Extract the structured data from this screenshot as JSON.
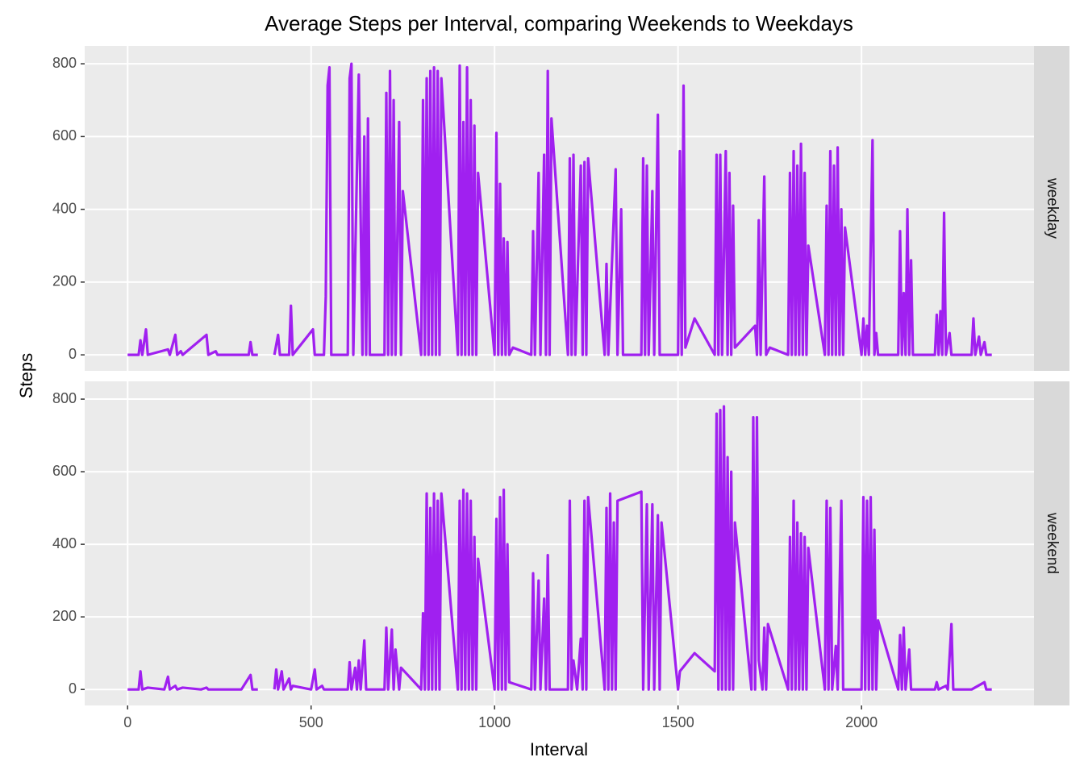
{
  "chart_data": {
    "type": "line",
    "title": "Average Steps per Interval, comparing Weekends to Weekdays",
    "xlabel": "Interval",
    "ylabel": "Steps",
    "xlim": [
      -117,
      2470
    ],
    "xticks": [
      0,
      500,
      1000,
      1500,
      2000
    ],
    "ylim": [
      -44,
      849
    ],
    "yticks": [
      0,
      200,
      400,
      600,
      800
    ],
    "grid": true,
    "color": "#a020f0",
    "facets": [
      {
        "label": "weekday",
        "x": [
          0,
          30,
          35,
          40,
          50,
          55,
          110,
          115,
          130,
          135,
          145,
          150,
          215,
          220,
          240,
          245,
          330,
          335,
          340,
          355,
          380,
          400,
          410,
          415,
          440,
          445,
          450,
          505,
          510,
          535,
          540,
          545,
          550,
          555,
          600,
          605,
          610,
          615,
          630,
          640,
          645,
          650,
          655,
          660,
          700,
          705,
          710,
          715,
          720,
          725,
          730,
          740,
          745,
          750,
          800,
          805,
          810,
          815,
          820,
          825,
          830,
          835,
          840,
          845,
          850,
          855,
          900,
          905,
          910,
          915,
          920,
          925,
          930,
          935,
          940,
          945,
          950,
          955,
          1000,
          1005,
          1010,
          1015,
          1020,
          1025,
          1030,
          1035,
          1040,
          1050,
          1100,
          1105,
          1110,
          1120,
          1125,
          1135,
          1140,
          1145,
          1150,
          1155,
          1200,
          1205,
          1210,
          1215,
          1220,
          1235,
          1240,
          1245,
          1250,
          1255,
          1300,
          1305,
          1310,
          1330,
          1335,
          1345,
          1350,
          1400,
          1405,
          1410,
          1415,
          1420,
          1430,
          1435,
          1445,
          1450,
          1500,
          1505,
          1510,
          1515,
          1520,
          1545,
          1600,
          1605,
          1610,
          1615,
          1620,
          1630,
          1635,
          1640,
          1645,
          1650,
          1655,
          1710,
          1715,
          1720,
          1725,
          1735,
          1740,
          1750,
          1800,
          1805,
          1810,
          1815,
          1820,
          1825,
          1830,
          1835,
          1840,
          1845,
          1850,
          1855,
          1900,
          1905,
          1910,
          1915,
          1920,
          1925,
          1930,
          1935,
          1940,
          1945,
          1950,
          1955,
          2000,
          2005,
          2010,
          2015,
          2020,
          2030,
          2035,
          2040,
          2045,
          2100,
          2105,
          2110,
          2115,
          2120,
          2125,
          2130,
          2135,
          2140,
          2200,
          2205,
          2210,
          2215,
          2220,
          2225,
          2230,
          2240,
          2245,
          2300,
          2305,
          2310,
          2320,
          2325,
          2335,
          2340,
          2355
        ],
        "values": [
          0,
          0,
          40,
          0,
          70,
          0,
          15,
          0,
          55,
          0,
          10,
          0,
          55,
          0,
          10,
          0,
          0,
          35,
          0,
          0,
          null,
          0,
          55,
          0,
          0,
          135,
          0,
          70,
          0,
          0,
          160,
          740,
          790,
          0,
          0,
          760,
          800,
          0,
          770,
          0,
          600,
          0,
          650,
          0,
          0,
          720,
          0,
          780,
          0,
          700,
          0,
          640,
          0,
          450,
          0,
          700,
          0,
          760,
          0,
          780,
          0,
          790,
          0,
          780,
          0,
          760,
          0,
          795,
          0,
          640,
          0,
          790,
          0,
          700,
          0,
          630,
          0,
          500,
          0,
          610,
          0,
          470,
          0,
          320,
          0,
          310,
          0,
          20,
          0,
          340,
          0,
          500,
          0,
          550,
          0,
          780,
          0,
          650,
          0,
          540,
          0,
          550,
          0,
          520,
          0,
          530,
          0,
          540,
          0,
          250,
          0,
          510,
          0,
          400,
          0,
          0,
          540,
          0,
          520,
          0,
          450,
          0,
          660,
          0,
          0,
          560,
          0,
          740,
          20,
          100,
          0,
          550,
          0,
          550,
          0,
          560,
          0,
          500,
          0,
          410,
          20,
          80,
          0,
          370,
          0,
          490,
          0,
          20,
          0,
          500,
          0,
          560,
          0,
          520,
          0,
          580,
          0,
          500,
          0,
          300,
          0,
          410,
          0,
          560,
          0,
          520,
          0,
          570,
          0,
          400,
          0,
          350,
          0,
          100,
          0,
          80,
          0,
          590,
          0,
          60,
          0,
          0,
          340,
          0,
          170,
          0,
          400,
          0,
          260,
          0,
          0,
          110,
          0,
          120,
          0,
          390,
          0,
          60,
          0,
          0,
          100,
          0,
          50,
          0,
          35,
          0,
          0
        ]
      },
      {
        "label": "weekend",
        "x": [
          0,
          30,
          35,
          40,
          55,
          100,
          110,
          115,
          130,
          135,
          150,
          200,
          215,
          220,
          310,
          335,
          340,
          355,
          380,
          400,
          405,
          410,
          420,
          425,
          440,
          445,
          450,
          500,
          510,
          515,
          530,
          535,
          600,
          605,
          610,
          620,
          625,
          630,
          635,
          645,
          650,
          700,
          705,
          710,
          720,
          725,
          730,
          740,
          745,
          800,
          805,
          810,
          815,
          820,
          825,
          830,
          835,
          840,
          845,
          850,
          855,
          900,
          905,
          910,
          915,
          920,
          925,
          930,
          935,
          940,
          945,
          950,
          955,
          1000,
          1005,
          1010,
          1015,
          1020,
          1025,
          1030,
          1035,
          1040,
          1100,
          1105,
          1110,
          1120,
          1125,
          1135,
          1140,
          1145,
          1150,
          1200,
          1205,
          1210,
          1215,
          1225,
          1235,
          1240,
          1245,
          1250,
          1255,
          1300,
          1305,
          1310,
          1315,
          1320,
          1325,
          1330,
          1335,
          1400,
          1405,
          1415,
          1420,
          1430,
          1435,
          1445,
          1450,
          1455,
          1500,
          1505,
          1545,
          1600,
          1605,
          1610,
          1615,
          1620,
          1625,
          1630,
          1635,
          1640,
          1645,
          1650,
          1655,
          1700,
          1705,
          1710,
          1715,
          1720,
          1730,
          1735,
          1740,
          1745,
          1800,
          1805,
          1810,
          1815,
          1820,
          1825,
          1830,
          1835,
          1840,
          1845,
          1850,
          1855,
          1900,
          1905,
          1910,
          1915,
          1920,
          1930,
          1935,
          1945,
          1950,
          2000,
          2005,
          2010,
          2015,
          2020,
          2025,
          2030,
          2035,
          2040,
          2045,
          2100,
          2105,
          2110,
          2115,
          2120,
          2130,
          2135,
          2200,
          2205,
          2210,
          2230,
          2235,
          2245,
          2250,
          2300,
          2335,
          2340,
          2355
        ],
        "values": [
          0,
          0,
          50,
          0,
          5,
          0,
          35,
          0,
          10,
          0,
          5,
          0,
          5,
          0,
          0,
          40,
          0,
          0,
          null,
          0,
          55,
          0,
          50,
          0,
          30,
          0,
          10,
          0,
          55,
          0,
          10,
          0,
          0,
          75,
          0,
          60,
          0,
          80,
          0,
          135,
          0,
          0,
          170,
          0,
          165,
          0,
          110,
          0,
          60,
          0,
          210,
          0,
          540,
          0,
          500,
          0,
          540,
          0,
          520,
          0,
          540,
          0,
          520,
          0,
          550,
          0,
          540,
          0,
          520,
          0,
          420,
          0,
          360,
          0,
          470,
          0,
          530,
          0,
          550,
          0,
          400,
          20,
          0,
          320,
          0,
          300,
          0,
          250,
          0,
          370,
          0,
          0,
          520,
          0,
          80,
          0,
          140,
          0,
          520,
          0,
          530,
          0,
          500,
          0,
          540,
          0,
          460,
          0,
          520,
          545,
          0,
          510,
          0,
          510,
          0,
          480,
          0,
          460,
          0,
          50,
          100,
          50,
          760,
          0,
          770,
          0,
          780,
          0,
          640,
          0,
          600,
          0,
          460,
          0,
          750,
          0,
          750,
          80,
          0,
          170,
          0,
          180,
          0,
          420,
          0,
          520,
          0,
          460,
          0,
          430,
          0,
          420,
          0,
          390,
          0,
          520,
          0,
          500,
          0,
          120,
          0,
          520,
          0,
          0,
          530,
          0,
          520,
          0,
          530,
          0,
          440,
          0,
          190,
          0,
          150,
          0,
          170,
          0,
          110,
          0,
          0,
          20,
          0,
          10,
          0,
          180,
          0,
          0,
          20,
          0,
          0
        ]
      }
    ]
  }
}
